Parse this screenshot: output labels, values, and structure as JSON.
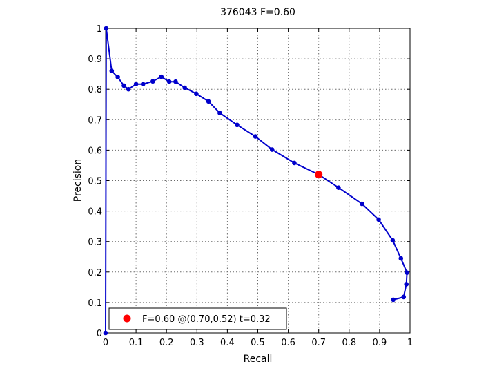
{
  "chart_data": {
    "type": "line",
    "title": "376043 F=0.60",
    "xlabel": "Recall",
    "ylabel": "Precision",
    "xlim": [
      0,
      1
    ],
    "ylim": [
      0,
      1
    ],
    "grid": true,
    "xticks": [
      "0",
      "0.1",
      "0.2",
      "0.3",
      "0.4",
      "0.5",
      "0.6",
      "0.7",
      "0.8",
      "0.9",
      "1"
    ],
    "yticks": [
      "0",
      "0.1",
      "0.2",
      "0.3",
      "0.4",
      "0.5",
      "0.6",
      "0.7",
      "0.8",
      "0.9",
      "1"
    ],
    "series": [
      {
        "color": "#0000cc",
        "points": [
          [
            0,
            0
          ],
          [
            0.002,
            1.0
          ],
          [
            0.02,
            0.86
          ],
          [
            0.04,
            0.84
          ],
          [
            0.06,
            0.812
          ],
          [
            0.075,
            0.8
          ],
          [
            0.1,
            0.817
          ],
          [
            0.123,
            0.817
          ],
          [
            0.155,
            0.826
          ],
          [
            0.183,
            0.841
          ],
          [
            0.209,
            0.825
          ],
          [
            0.23,
            0.825
          ],
          [
            0.26,
            0.805
          ],
          [
            0.298,
            0.785
          ],
          [
            0.338,
            0.76
          ],
          [
            0.375,
            0.722
          ],
          [
            0.432,
            0.683
          ],
          [
            0.492,
            0.645
          ],
          [
            0.547,
            0.602
          ],
          [
            0.62,
            0.558
          ],
          [
            0.7,
            0.52
          ],
          [
            0.765,
            0.477
          ],
          [
            0.842,
            0.424
          ],
          [
            0.897,
            0.372
          ],
          [
            0.943,
            0.304
          ],
          [
            0.97,
            0.245
          ],
          [
            0.99,
            0.198
          ],
          [
            0.988,
            0.16
          ],
          [
            0.979,
            0.118
          ],
          [
            0.945,
            0.109
          ]
        ]
      }
    ],
    "best_point": {
      "x": 0.7,
      "y": 0.52,
      "color": "#ff0000"
    },
    "legend": {
      "position": "bottom-left",
      "label": "F=0.60 @(0.70,0.52) t=0.32"
    }
  }
}
